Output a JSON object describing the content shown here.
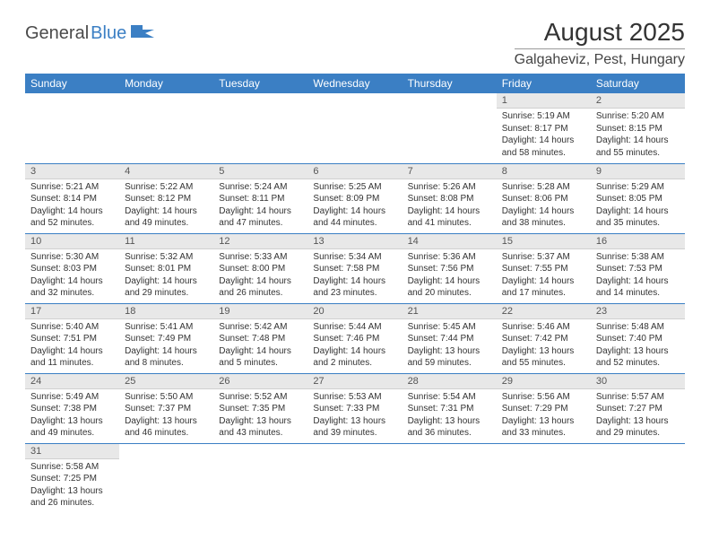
{
  "logo": {
    "general": "General",
    "blue": "Blue"
  },
  "title": "August 2025",
  "location": "Galgaheviz, Pest, Hungary",
  "colors": {
    "header_bg": "#3b7fc4",
    "header_fg": "#ffffff",
    "daynum_bg": "#e8e8e8",
    "border": "#3b7fc4",
    "text": "#333333"
  },
  "weekdays": [
    "Sunday",
    "Monday",
    "Tuesday",
    "Wednesday",
    "Thursday",
    "Friday",
    "Saturday"
  ],
  "weeks": [
    [
      null,
      null,
      null,
      null,
      null,
      {
        "n": "1",
        "sunrise": "5:19 AM",
        "sunset": "8:17 PM",
        "day_h": "14",
        "day_m": "58"
      },
      {
        "n": "2",
        "sunrise": "5:20 AM",
        "sunset": "8:15 PM",
        "day_h": "14",
        "day_m": "55"
      }
    ],
    [
      {
        "n": "3",
        "sunrise": "5:21 AM",
        "sunset": "8:14 PM",
        "day_h": "14",
        "day_m": "52"
      },
      {
        "n": "4",
        "sunrise": "5:22 AM",
        "sunset": "8:12 PM",
        "day_h": "14",
        "day_m": "49"
      },
      {
        "n": "5",
        "sunrise": "5:24 AM",
        "sunset": "8:11 PM",
        "day_h": "14",
        "day_m": "47"
      },
      {
        "n": "6",
        "sunrise": "5:25 AM",
        "sunset": "8:09 PM",
        "day_h": "14",
        "day_m": "44"
      },
      {
        "n": "7",
        "sunrise": "5:26 AM",
        "sunset": "8:08 PM",
        "day_h": "14",
        "day_m": "41"
      },
      {
        "n": "8",
        "sunrise": "5:28 AM",
        "sunset": "8:06 PM",
        "day_h": "14",
        "day_m": "38"
      },
      {
        "n": "9",
        "sunrise": "5:29 AM",
        "sunset": "8:05 PM",
        "day_h": "14",
        "day_m": "35"
      }
    ],
    [
      {
        "n": "10",
        "sunrise": "5:30 AM",
        "sunset": "8:03 PM",
        "day_h": "14",
        "day_m": "32"
      },
      {
        "n": "11",
        "sunrise": "5:32 AM",
        "sunset": "8:01 PM",
        "day_h": "14",
        "day_m": "29"
      },
      {
        "n": "12",
        "sunrise": "5:33 AM",
        "sunset": "8:00 PM",
        "day_h": "14",
        "day_m": "26"
      },
      {
        "n": "13",
        "sunrise": "5:34 AM",
        "sunset": "7:58 PM",
        "day_h": "14",
        "day_m": "23"
      },
      {
        "n": "14",
        "sunrise": "5:36 AM",
        "sunset": "7:56 PM",
        "day_h": "14",
        "day_m": "20"
      },
      {
        "n": "15",
        "sunrise": "5:37 AM",
        "sunset": "7:55 PM",
        "day_h": "14",
        "day_m": "17"
      },
      {
        "n": "16",
        "sunrise": "5:38 AM",
        "sunset": "7:53 PM",
        "day_h": "14",
        "day_m": "14"
      }
    ],
    [
      {
        "n": "17",
        "sunrise": "5:40 AM",
        "sunset": "7:51 PM",
        "day_h": "14",
        "day_m": "11"
      },
      {
        "n": "18",
        "sunrise": "5:41 AM",
        "sunset": "7:49 PM",
        "day_h": "14",
        "day_m": "8"
      },
      {
        "n": "19",
        "sunrise": "5:42 AM",
        "sunset": "7:48 PM",
        "day_h": "14",
        "day_m": "5"
      },
      {
        "n": "20",
        "sunrise": "5:44 AM",
        "sunset": "7:46 PM",
        "day_h": "14",
        "day_m": "2"
      },
      {
        "n": "21",
        "sunrise": "5:45 AM",
        "sunset": "7:44 PM",
        "day_h": "13",
        "day_m": "59"
      },
      {
        "n": "22",
        "sunrise": "5:46 AM",
        "sunset": "7:42 PM",
        "day_h": "13",
        "day_m": "55"
      },
      {
        "n": "23",
        "sunrise": "5:48 AM",
        "sunset": "7:40 PM",
        "day_h": "13",
        "day_m": "52"
      }
    ],
    [
      {
        "n": "24",
        "sunrise": "5:49 AM",
        "sunset": "7:38 PM",
        "day_h": "13",
        "day_m": "49"
      },
      {
        "n": "25",
        "sunrise": "5:50 AM",
        "sunset": "7:37 PM",
        "day_h": "13",
        "day_m": "46"
      },
      {
        "n": "26",
        "sunrise": "5:52 AM",
        "sunset": "7:35 PM",
        "day_h": "13",
        "day_m": "43"
      },
      {
        "n": "27",
        "sunrise": "5:53 AM",
        "sunset": "7:33 PM",
        "day_h": "13",
        "day_m": "39"
      },
      {
        "n": "28",
        "sunrise": "5:54 AM",
        "sunset": "7:31 PM",
        "day_h": "13",
        "day_m": "36"
      },
      {
        "n": "29",
        "sunrise": "5:56 AM",
        "sunset": "7:29 PM",
        "day_h": "13",
        "day_m": "33"
      },
      {
        "n": "30",
        "sunrise": "5:57 AM",
        "sunset": "7:27 PM",
        "day_h": "13",
        "day_m": "29"
      }
    ],
    [
      {
        "n": "31",
        "sunrise": "5:58 AM",
        "sunset": "7:25 PM",
        "day_h": "13",
        "day_m": "26"
      },
      null,
      null,
      null,
      null,
      null,
      null
    ]
  ],
  "labels": {
    "sunrise": "Sunrise:",
    "sunset": "Sunset:",
    "daylight": "Daylight:",
    "hours": "hours",
    "and": "and",
    "minutes": "minutes."
  }
}
